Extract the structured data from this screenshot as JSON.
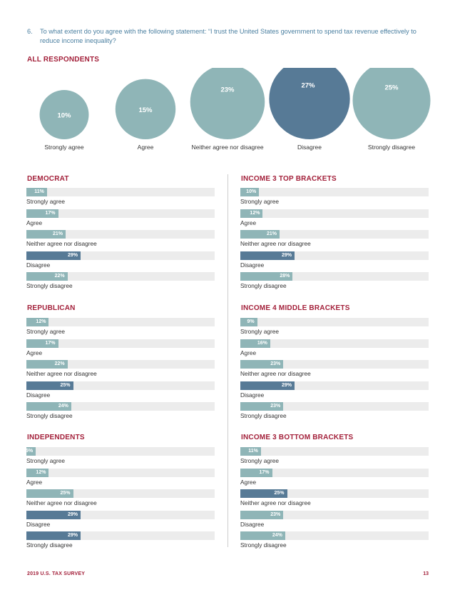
{
  "question": {
    "number": "6.",
    "text": "To what extent do you agree with the following statement: “I trust the United States government to spend tax revenue effectively to reduce income inequality?"
  },
  "colors": {
    "accent": "#a3203a",
    "question": "#4a7fa0",
    "teal": "#8fb5b7",
    "slate": "#577a96",
    "track": "#ececec"
  },
  "chart_data": [
    {
      "type": "bubble",
      "title": "ALL RESPONDENTS",
      "categories": [
        "Strongly agree",
        "Agree",
        "Neither agree nor disagree",
        "Disagree",
        "Strongly disagree"
      ],
      "values": [
        10,
        15,
        23,
        27,
        25
      ],
      "value_labels": [
        "10%",
        "15%",
        "23%",
        "27%",
        "25%"
      ]
    },
    {
      "type": "bar",
      "title": "DEMOCRAT",
      "categories": [
        "Strongly agree",
        "Agree",
        "Neither agree nor disagree",
        "Disagree",
        "Strongly disagree"
      ],
      "values": [
        11,
        17,
        21,
        29,
        22
      ],
      "value_labels": [
        "11%",
        "17%",
        "21%",
        "29%",
        "22%"
      ],
      "highlight_index": 3
    },
    {
      "type": "bar",
      "title": "INCOME 3 TOP BRACKETS",
      "categories": [
        "Strongly agree",
        "Agree",
        "Neither agree nor disagree",
        "Disagree",
        "Strongly disagree"
      ],
      "values": [
        10,
        12,
        21,
        29,
        28
      ],
      "value_labels": [
        "10%",
        "12%",
        "21%",
        "29%",
        "28%"
      ],
      "highlight_index": 3
    },
    {
      "type": "bar",
      "title": "REPUBLICAN",
      "categories": [
        "Strongly agree",
        "Agree",
        "Neither agree nor disagree",
        "Disagree",
        "Strongly disagree"
      ],
      "values": [
        12,
        17,
        22,
        25,
        24
      ],
      "value_labels": [
        "12%",
        "17%",
        "22%",
        "25%",
        "24%"
      ],
      "highlight_index": 3
    },
    {
      "type": "bar",
      "title": "INCOME 4 MIDDLE BRACKETS",
      "categories": [
        "Strongly agree",
        "Agree",
        "Neither agree nor disagree",
        "Disagree",
        "Strongly disagree"
      ],
      "values": [
        9,
        16,
        23,
        29,
        23
      ],
      "value_labels": [
        "9%",
        "16%",
        "23%",
        "29%",
        "23%"
      ],
      "highlight_index": 3
    },
    {
      "type": "bar",
      "title": "INDEPENDENTS",
      "categories": [
        "Strongly agree",
        "Agree",
        "Neither agree nor disagree",
        "Disagree",
        "Strongly disagree"
      ],
      "values": [
        5,
        12,
        25,
        29,
        29
      ],
      "value_labels": [
        "5%",
        "12%",
        "25%",
        "29%",
        "29%"
      ],
      "highlight_index": 3,
      "highlight_indices": [
        3,
        4
      ]
    },
    {
      "type": "bar",
      "title": "INCOME 3 BOTTOM BRACKETS",
      "categories": [
        "Strongly agree",
        "Agree",
        "Neither agree nor disagree",
        "Disagree",
        "Strongly disagree"
      ],
      "values": [
        11,
        17,
        25,
        23,
        24
      ],
      "value_labels": [
        "11%",
        "17%",
        "25%",
        "23%",
        "24%"
      ],
      "highlight_index": 2
    }
  ],
  "footer": {
    "left": "2019 U.S. TAX SURVEY",
    "right": "13"
  }
}
